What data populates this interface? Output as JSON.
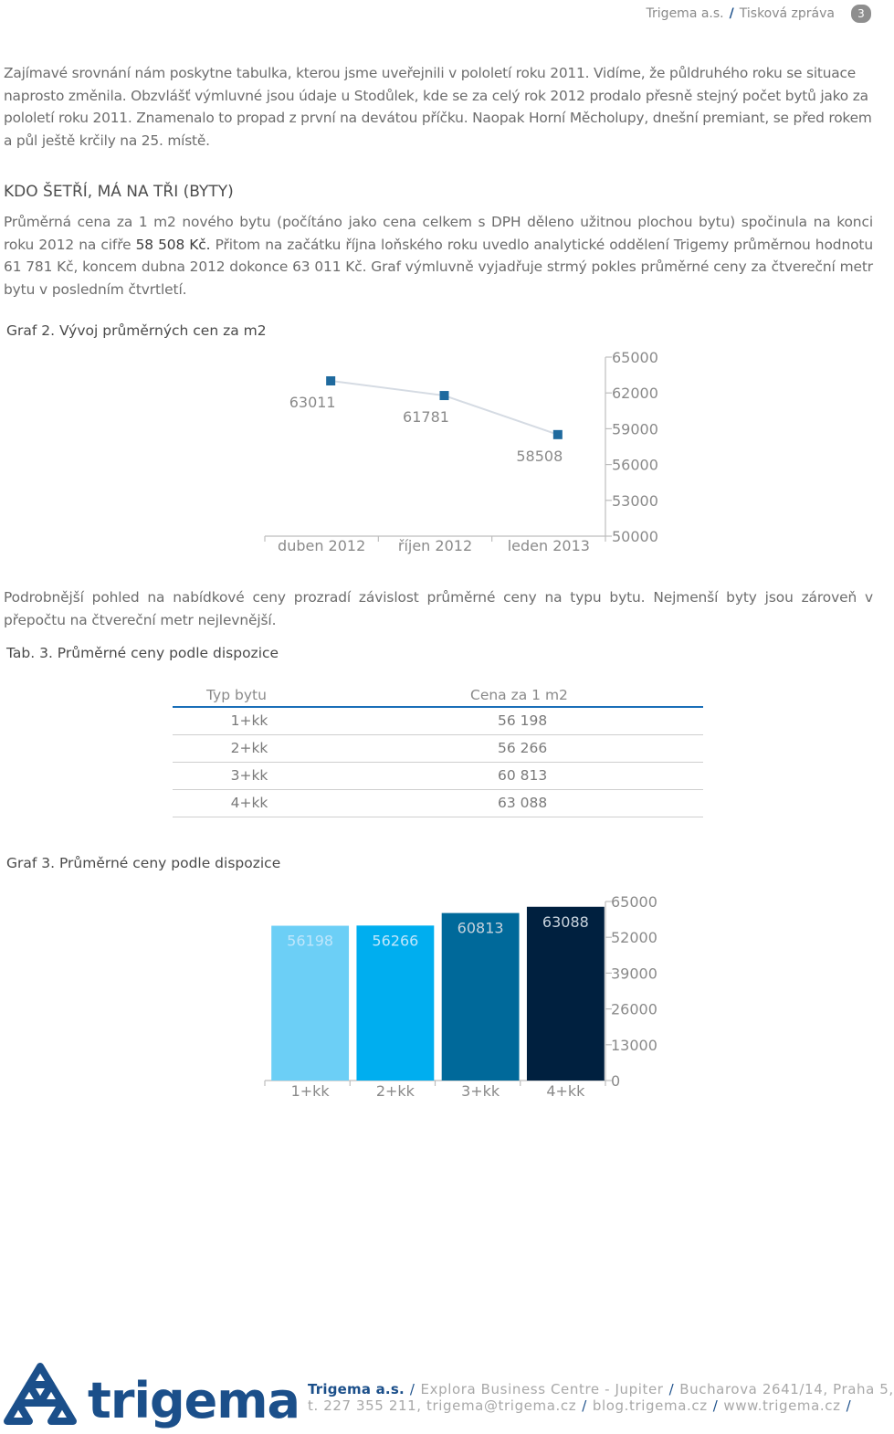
{
  "header": {
    "company": "Trigema a.s.",
    "section": "Tisková zpráva",
    "page_number": "3"
  },
  "intro": {
    "text": "Zajímavé srovnání nám poskytne tabulka, kterou jsme uveřejnili v pololetí roku 2011. Vidíme, že půldruhého roku se situace naprosto změnila. Obzvlášť výmluvné jsou údaje u Stodůlek, kde se za celý rok 2012 prodalo přesně stejný počet bytů jako za pololetí roku 2011. Znamenalo to propad z první na devátou příčku.",
    "text_tail": "Naopak Horní Měcholupy, dnešní premiant, se před rokem a půl ještě krčily  na 25. místě."
  },
  "section_heading": "KDO ŠETŘÍ, MÁ NA TŘI (BYTY)",
  "price_paragraph": {
    "part1": "Průměrná cena za 1 m2 nového bytu (počítáno jako cena celkem s DPH děleno užitnou plochou bytu) spočinula na konci roku 2012 na cifře",
    "highlight": "58 508 Kč.",
    "part2": "Přitom na začátku října loňského roku uvedlo analytické oddělení Trigemy průměrnou hodnotu 61 781 Kč, koncem dubna 2012 dokonce 63 011 Kč. Graf výmluvně vyjadřuje strmý pokles průměrné ceny za čtvereční metr bytu v posledním čtvrtletí."
  },
  "graph2_caption": "Graf 2. Vývoj průměrných cen za m2",
  "detail_paragraph": "Podrobnější pohled na nabídkové ceny prozradí závislost průměrné ceny na typu bytu. Nejmenší byty jsou zároveň v přepočtu na čtvereční metr nejlevnější.",
  "table_caption": "Tab. 3. Průměrné ceny podle dispozice",
  "table": {
    "headers": [
      "Typ bytu",
      "Cena za 1 m2"
    ],
    "rows": [
      {
        "type": "1+kk",
        "price": "56 198"
      },
      {
        "type": "2+kk",
        "price": "56 266"
      },
      {
        "type": "3+kk",
        "price": "60 813"
      },
      {
        "type": "4+kk",
        "price": "63 088"
      }
    ]
  },
  "graph3_caption": "Graf 3. Průměrné ceny podle dispozice",
  "chart_data": [
    {
      "type": "line",
      "categories": [
        "duben 2012",
        "říjen 2012",
        "leden 2013"
      ],
      "values": [
        63011,
        61781,
        58508
      ],
      "data_labels": [
        "63011",
        "61781",
        "58508"
      ],
      "ylim": [
        50000,
        65000
      ],
      "yticks": [
        "50000",
        "53000",
        "56000",
        "59000",
        "62000",
        "65000"
      ],
      "y_axis_side": "right",
      "color": "#1f6a9e",
      "line_color": "#d5dbe3"
    },
    {
      "type": "bar",
      "categories": [
        "1+kk",
        "2+kk",
        "3+kk",
        "4+kk"
      ],
      "values": [
        56198,
        56266,
        60813,
        63088
      ],
      "data_labels": [
        "56198",
        "56266",
        "60813",
        "63088"
      ],
      "ylim": [
        0,
        65000
      ],
      "yticks": [
        "0",
        "13000",
        "26000",
        "39000",
        "52000",
        "65000"
      ],
      "y_axis_side": "right",
      "colors": [
        "#6ccff6",
        "#00aeef",
        "#00699a",
        "#00203f"
      ]
    }
  ],
  "footer": {
    "logo_text": "trigema",
    "company": "Trigema a.s.",
    "address_parts": [
      "Explora Business Centre - Jupiter",
      "Bucharova 2641/14, Praha 5,"
    ],
    "contact_parts": [
      "t. 227 355 211, trigema@trigema.cz",
      "blog.trigema.cz",
      "www.trigema.cz"
    ]
  }
}
